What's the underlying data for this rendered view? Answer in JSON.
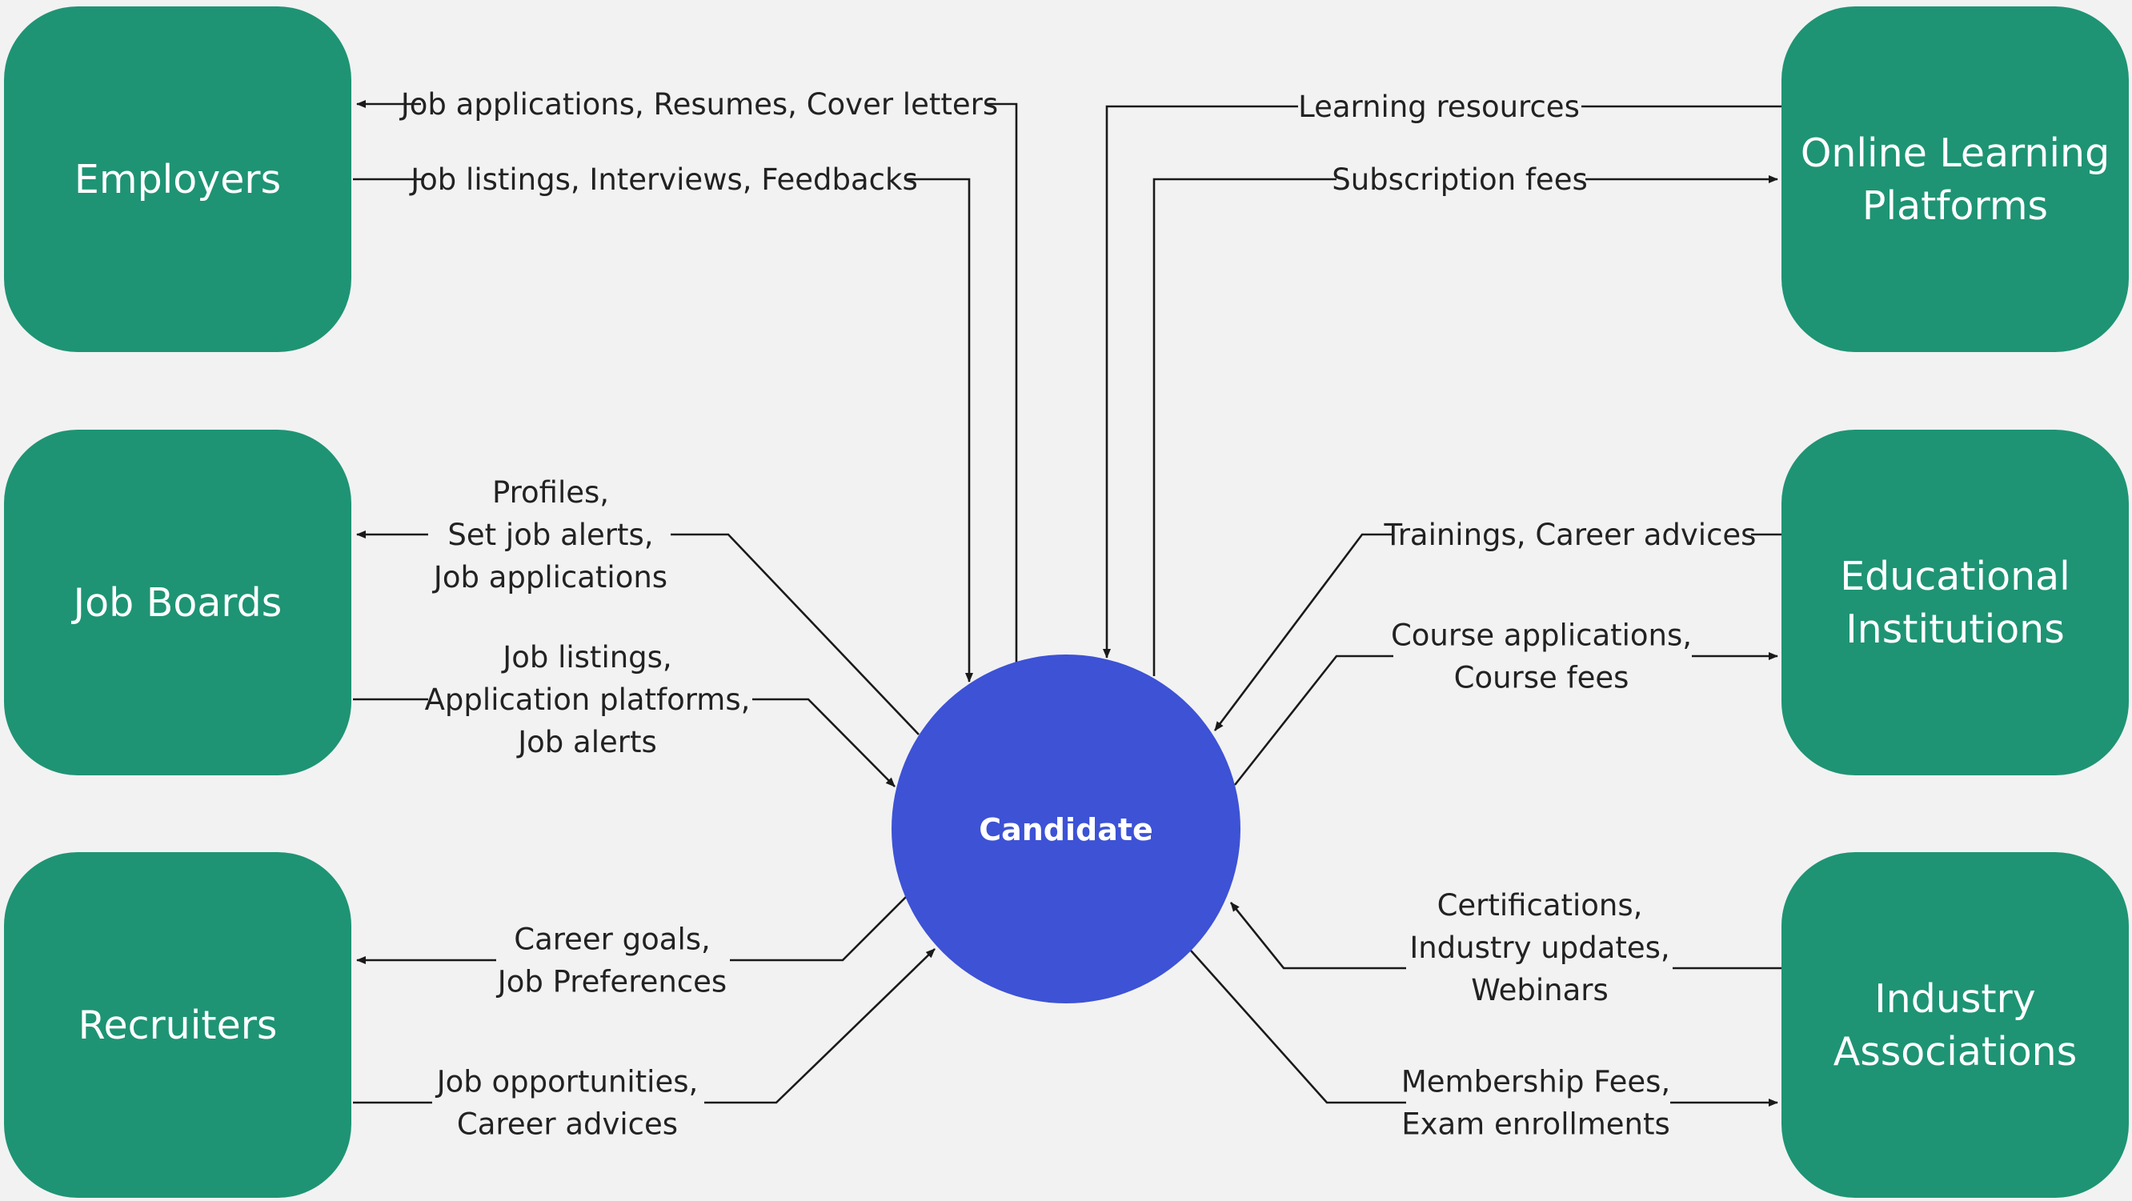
{
  "colors": {
    "background": "#f2f2f2",
    "entity_fill": "#1e9474",
    "center_fill": "#3d52d5",
    "line": "#1a1a1a",
    "text_dark": "#222222",
    "text_light": "#ffffff"
  },
  "center": {
    "label": "Candidate"
  },
  "entities": {
    "employers": {
      "lines": [
        "Employers"
      ]
    },
    "job_boards": {
      "lines": [
        "Job Boards"
      ]
    },
    "recruiters": {
      "lines": [
        "Recruiters"
      ]
    },
    "online_learning": {
      "lines": [
        "Online Learning",
        "Platforms"
      ]
    },
    "educational": {
      "lines": [
        "Educational",
        "Institutions"
      ]
    },
    "industry": {
      "lines": [
        "Industry",
        "Associations"
      ]
    }
  },
  "flows": {
    "employers_in": {
      "from": "Candidate",
      "to": "Employers",
      "lines": [
        "Job applications, Resumes, Cover letters"
      ]
    },
    "employers_out": {
      "from": "Employers",
      "to": "Candidate",
      "lines": [
        "Job listings, Interviews, Feedbacks"
      ]
    },
    "online_in": {
      "from": "Online Learning Platforms",
      "to": "Candidate",
      "lines": [
        "Learning resources"
      ]
    },
    "online_out": {
      "from": "Candidate",
      "to": "Online Learning Platforms",
      "lines": [
        "Subscription fees"
      ]
    },
    "jobboards_in": {
      "from": "Candidate",
      "to": "Job Boards",
      "lines": [
        "Profiles,",
        "Set job alerts,",
        "Job applications"
      ]
    },
    "jobboards_out": {
      "from": "Job Boards",
      "to": "Candidate",
      "lines": [
        "Job listings,",
        "Application platforms,",
        "Job alerts"
      ]
    },
    "edu_in": {
      "from": "Educational Institutions",
      "to": "Candidate",
      "lines": [
        "Trainings, Career advices"
      ]
    },
    "edu_out": {
      "from": "Candidate",
      "to": "Educational Institutions",
      "lines": [
        "Course applications,",
        "Course fees"
      ]
    },
    "recruiters_in": {
      "from": "Candidate",
      "to": "Recruiters",
      "lines": [
        "Career goals,",
        "Job Preferences"
      ]
    },
    "recruiters_out": {
      "from": "Recruiters",
      "to": "Candidate",
      "lines": [
        "Job opportunities,",
        "Career advices"
      ]
    },
    "industry_in": {
      "from": "Industry Associations",
      "to": "Candidate",
      "lines": [
        "Certifications,",
        "Industry updates,",
        "Webinars"
      ]
    },
    "industry_out": {
      "from": "Candidate",
      "to": "Industry Associations",
      "lines": [
        "Membership Fees,",
        "Exam enrollments"
      ]
    }
  }
}
